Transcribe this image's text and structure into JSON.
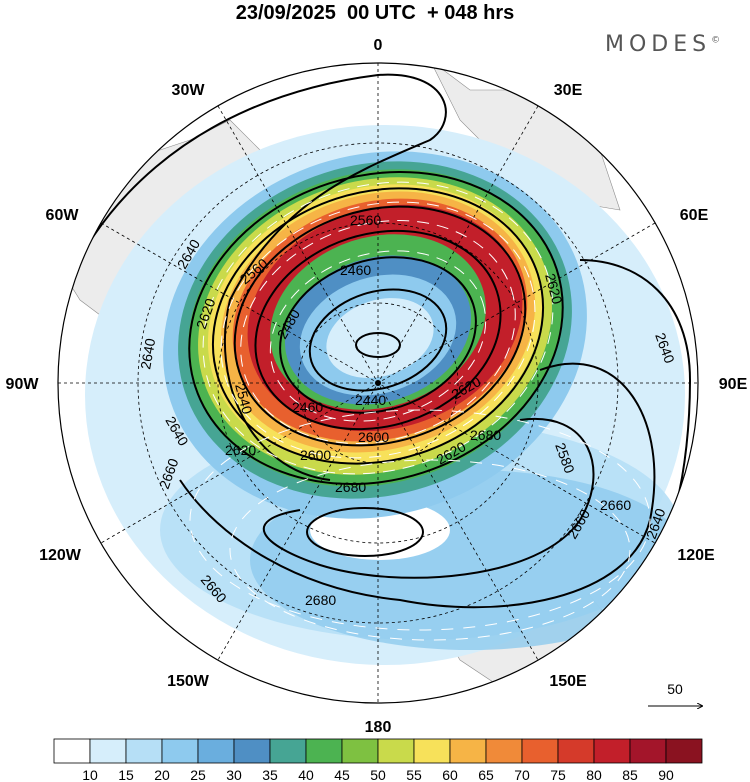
{
  "map": {
    "title": "23/09/2025  00 UTC  + 048 hrs",
    "brand": "MODES",
    "brand_mark": "©",
    "projection": "south polar stereographic",
    "longitude_labels": {
      "top": "0",
      "top_right": "30E",
      "right_upper": "60E",
      "right": "90E",
      "right_lower": "120E",
      "bottom_right": "150E",
      "bottom": "180",
      "bottom_left": "150W",
      "left_lower": "120W",
      "left": "90W",
      "left_upper": "60W",
      "top_left": "30W"
    },
    "contour_labels": [
      "2560",
      "2640",
      "2560",
      "2460",
      "2620",
      "2620",
      "2640",
      "2480",
      "2640",
      "2540",
      "2440",
      "2460",
      "2620",
      "2600",
      "2620",
      "2640",
      "2620",
      "2600",
      "2580",
      "2680",
      "2660",
      "2680",
      "2660",
      "2640",
      "2660",
      "2680",
      "2660"
    ],
    "vector_reference": {
      "value": "50"
    },
    "colorbar": {
      "ticks": [
        "10",
        "15",
        "20",
        "25",
        "30",
        "35",
        "40",
        "45",
        "50",
        "55",
        "60",
        "65",
        "70",
        "75",
        "80",
        "85",
        "90"
      ],
      "colors": [
        "#ffffff",
        "#d6eefb",
        "#b6dff6",
        "#8ecaee",
        "#6aaede",
        "#4f8fc4",
        "#46a594",
        "#4cb351",
        "#7ec141",
        "#c9da4b",
        "#f7e15a",
        "#f6b446",
        "#f08a39",
        "#e8602e",
        "#d53a2a",
        "#c21f2a",
        "#a3152a",
        "#8a1220"
      ]
    }
  }
}
